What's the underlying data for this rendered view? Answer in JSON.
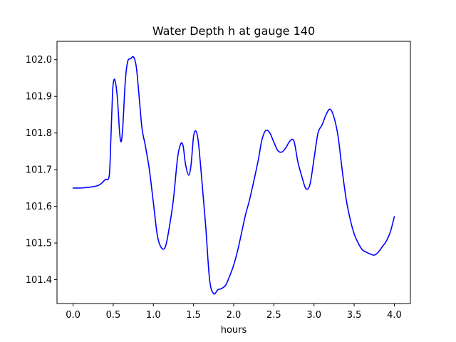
{
  "chart_data": {
    "type": "line",
    "title": "Water Depth h at gauge 140",
    "xlabel": "hours",
    "ylabel": "",
    "xlim": [
      -0.2,
      4.2
    ],
    "ylim": [
      101.335,
      102.05
    ],
    "x_ticks": [
      0.0,
      0.5,
      1.0,
      1.5,
      2.0,
      2.5,
      3.0,
      3.5,
      4.0
    ],
    "x_tick_labels": [
      "0.0",
      "0.5",
      "1.0",
      "1.5",
      "2.0",
      "2.5",
      "3.0",
      "3.5",
      "4.0"
    ],
    "y_ticks": [
      101.4,
      101.5,
      101.6,
      101.7,
      101.8,
      101.9,
      102.0
    ],
    "y_tick_labels": [
      "101.4",
      "101.5",
      "101.6",
      "101.7",
      "101.8",
      "101.9",
      "102.0"
    ],
    "grid": false,
    "series": [
      {
        "color": "#0000ff",
        "x": [
          0.0,
          0.1,
          0.2,
          0.3,
          0.35,
          0.4,
          0.45,
          0.47,
          0.49,
          0.5,
          0.52,
          0.55,
          0.58,
          0.6,
          0.62,
          0.65,
          0.68,
          0.72,
          0.75,
          0.78,
          0.8,
          0.83,
          0.86,
          0.9,
          0.95,
          1.0,
          1.05,
          1.1,
          1.15,
          1.2,
          1.25,
          1.3,
          1.34,
          1.37,
          1.4,
          1.44,
          1.47,
          1.5,
          1.53,
          1.56,
          1.6,
          1.65,
          1.7,
          1.75,
          1.8,
          1.82,
          1.85,
          1.9,
          1.95,
          2.0,
          2.05,
          2.1,
          2.15,
          2.2,
          2.3,
          2.35,
          2.4,
          2.45,
          2.5,
          2.55,
          2.6,
          2.65,
          2.7,
          2.75,
          2.8,
          2.85,
          2.9,
          2.95,
          3.0,
          3.05,
          3.1,
          3.15,
          3.2,
          3.25,
          3.3,
          3.35,
          3.4,
          3.45,
          3.5,
          3.55,
          3.6,
          3.65,
          3.7,
          3.75,
          3.8,
          3.85,
          3.9,
          3.95,
          4.0
        ],
        "y": [
          101.65,
          101.65,
          101.652,
          101.656,
          101.662,
          101.673,
          101.683,
          101.78,
          101.9,
          101.935,
          101.945,
          101.9,
          101.8,
          101.777,
          101.82,
          101.94,
          101.995,
          102.003,
          102.008,
          101.99,
          101.955,
          101.88,
          101.81,
          101.765,
          101.7,
          101.61,
          101.52,
          101.487,
          101.49,
          101.545,
          101.62,
          101.73,
          101.77,
          101.765,
          101.715,
          101.685,
          101.715,
          101.79,
          101.805,
          101.775,
          101.68,
          101.55,
          101.4,
          101.362,
          101.372,
          101.374,
          101.376,
          101.385,
          101.41,
          101.44,
          101.48,
          101.53,
          101.58,
          101.62,
          101.72,
          101.78,
          101.807,
          101.8,
          101.775,
          101.752,
          101.748,
          101.76,
          101.778,
          101.778,
          101.72,
          101.68,
          101.648,
          101.66,
          101.73,
          101.8,
          101.822,
          101.85,
          101.865,
          101.842,
          101.79,
          101.7,
          101.62,
          101.565,
          101.525,
          101.5,
          101.482,
          101.475,
          101.47,
          101.467,
          101.475,
          101.49,
          101.505,
          101.53,
          101.572
        ]
      }
    ]
  }
}
